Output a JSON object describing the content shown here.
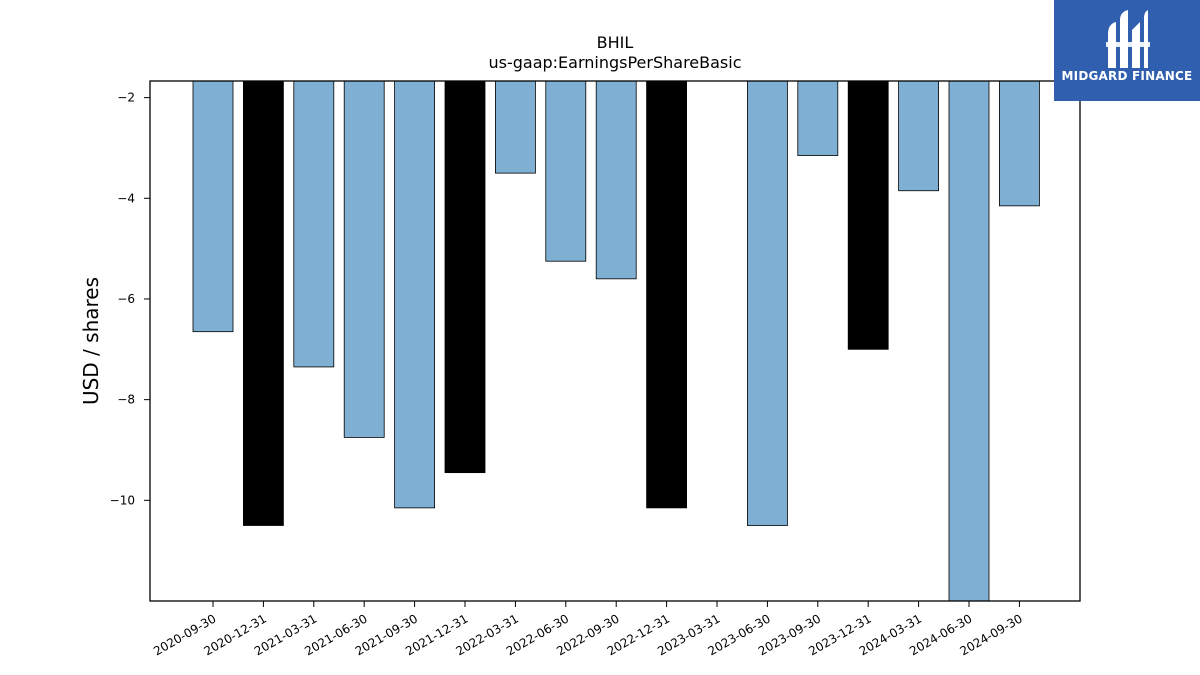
{
  "chart_data": {
    "type": "bar",
    "title": "BHIL",
    "subtitle": "us-gaap:EarningsPerShareBasic",
    "xlabel": "",
    "ylabel": "USD / shares",
    "ylim": [
      -12.0,
      -1.67
    ],
    "yticks": [
      -2,
      -4,
      -6,
      -8,
      -10
    ],
    "categories": [
      "2020-09-30",
      "2020-12-31",
      "2021-03-31",
      "2021-06-30",
      "2021-09-30",
      "2021-12-31",
      "2022-03-31",
      "2022-06-30",
      "2022-09-30",
      "2022-12-31",
      "2023-03-31",
      "2023-06-30",
      "2023-09-30",
      "2023-12-31",
      "2024-03-31",
      "2024-06-30",
      "2024-09-30"
    ],
    "values": [
      -6.65,
      -10.5,
      -7.35,
      -8.75,
      -10.15,
      -9.45,
      -3.5,
      -5.25,
      -5.6,
      -10.15,
      null,
      -10.5,
      -3.15,
      -7.0,
      -3.85,
      -12.0,
      -4.15
    ],
    "bar_colors": [
      "#7fafd3",
      "#000000",
      "#7fafd3",
      "#7fafd3",
      "#7fafd3",
      "#000000",
      "#7fafd3",
      "#7fafd3",
      "#7fafd3",
      "#000000",
      "#7fafd3",
      "#7fafd3",
      "#7fafd3",
      "#000000",
      "#7fafd3",
      "#7fafd3",
      "#7fafd3"
    ],
    "grid": false,
    "legend": "none"
  },
  "logo": {
    "text": "MIDGARD FINANCE",
    "background": "#2f5fae"
  }
}
